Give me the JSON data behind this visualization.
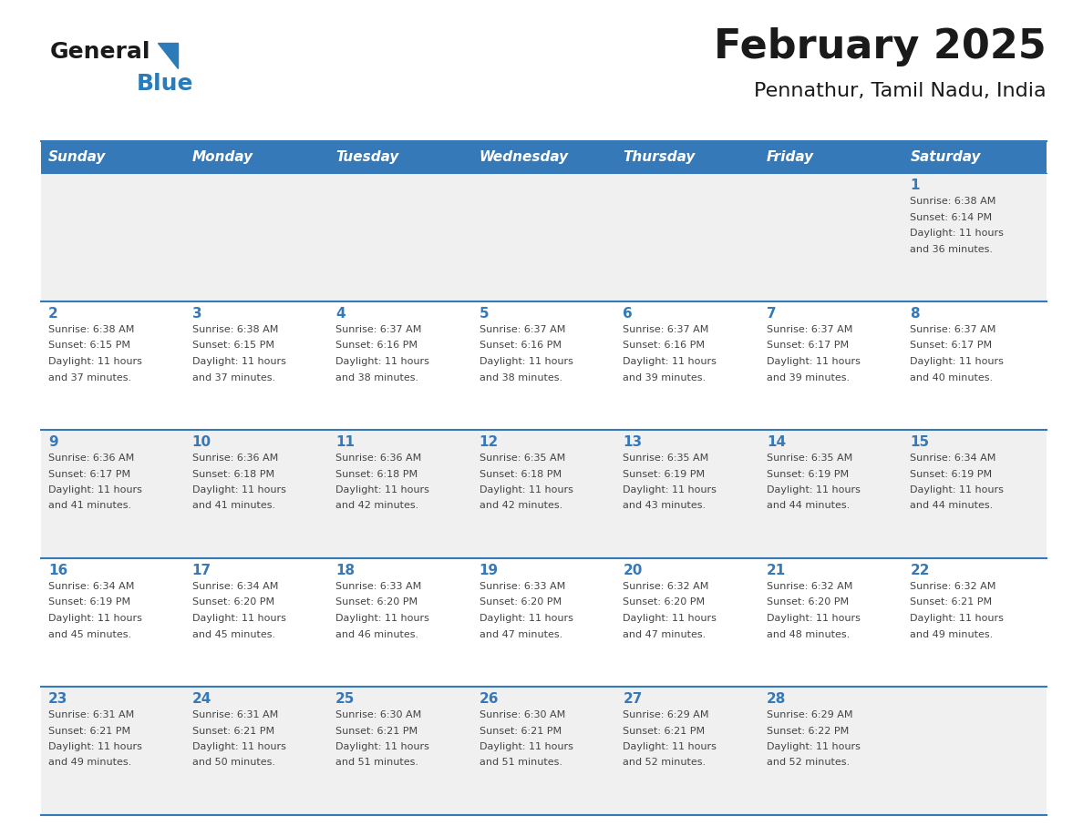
{
  "title": "February 2025",
  "subtitle": "Pennathur, Tamil Nadu, India",
  "days_of_week": [
    "Sunday",
    "Monday",
    "Tuesday",
    "Wednesday",
    "Thursday",
    "Friday",
    "Saturday"
  ],
  "header_bg_color": "#3579B8",
  "header_text_color": "#FFFFFF",
  "cell_bg_colors": [
    "#F0F0F0",
    "#FFFFFF",
    "#F0F0F0",
    "#FFFFFF",
    "#F0F0F0"
  ],
  "day_number_color": "#3579B8",
  "info_text_color": "#444444",
  "border_color": "#3579B8",
  "title_color": "#1a1a1a",
  "subtitle_color": "#1a1a1a",
  "logo_general_color": "#1a1a1a",
  "logo_blue_color": "#2B7BB9",
  "weeks": [
    [
      {
        "day": null,
        "info": null
      },
      {
        "day": null,
        "info": null
      },
      {
        "day": null,
        "info": null
      },
      {
        "day": null,
        "info": null
      },
      {
        "day": null,
        "info": null
      },
      {
        "day": null,
        "info": null
      },
      {
        "day": 1,
        "info": "Sunrise: 6:38 AM\nSunset: 6:14 PM\nDaylight: 11 hours\nand 36 minutes."
      }
    ],
    [
      {
        "day": 2,
        "info": "Sunrise: 6:38 AM\nSunset: 6:15 PM\nDaylight: 11 hours\nand 37 minutes."
      },
      {
        "day": 3,
        "info": "Sunrise: 6:38 AM\nSunset: 6:15 PM\nDaylight: 11 hours\nand 37 minutes."
      },
      {
        "day": 4,
        "info": "Sunrise: 6:37 AM\nSunset: 6:16 PM\nDaylight: 11 hours\nand 38 minutes."
      },
      {
        "day": 5,
        "info": "Sunrise: 6:37 AM\nSunset: 6:16 PM\nDaylight: 11 hours\nand 38 minutes."
      },
      {
        "day": 6,
        "info": "Sunrise: 6:37 AM\nSunset: 6:16 PM\nDaylight: 11 hours\nand 39 minutes."
      },
      {
        "day": 7,
        "info": "Sunrise: 6:37 AM\nSunset: 6:17 PM\nDaylight: 11 hours\nand 39 minutes."
      },
      {
        "day": 8,
        "info": "Sunrise: 6:37 AM\nSunset: 6:17 PM\nDaylight: 11 hours\nand 40 minutes."
      }
    ],
    [
      {
        "day": 9,
        "info": "Sunrise: 6:36 AM\nSunset: 6:17 PM\nDaylight: 11 hours\nand 41 minutes."
      },
      {
        "day": 10,
        "info": "Sunrise: 6:36 AM\nSunset: 6:18 PM\nDaylight: 11 hours\nand 41 minutes."
      },
      {
        "day": 11,
        "info": "Sunrise: 6:36 AM\nSunset: 6:18 PM\nDaylight: 11 hours\nand 42 minutes."
      },
      {
        "day": 12,
        "info": "Sunrise: 6:35 AM\nSunset: 6:18 PM\nDaylight: 11 hours\nand 42 minutes."
      },
      {
        "day": 13,
        "info": "Sunrise: 6:35 AM\nSunset: 6:19 PM\nDaylight: 11 hours\nand 43 minutes."
      },
      {
        "day": 14,
        "info": "Sunrise: 6:35 AM\nSunset: 6:19 PM\nDaylight: 11 hours\nand 44 minutes."
      },
      {
        "day": 15,
        "info": "Sunrise: 6:34 AM\nSunset: 6:19 PM\nDaylight: 11 hours\nand 44 minutes."
      }
    ],
    [
      {
        "day": 16,
        "info": "Sunrise: 6:34 AM\nSunset: 6:19 PM\nDaylight: 11 hours\nand 45 minutes."
      },
      {
        "day": 17,
        "info": "Sunrise: 6:34 AM\nSunset: 6:20 PM\nDaylight: 11 hours\nand 45 minutes."
      },
      {
        "day": 18,
        "info": "Sunrise: 6:33 AM\nSunset: 6:20 PM\nDaylight: 11 hours\nand 46 minutes."
      },
      {
        "day": 19,
        "info": "Sunrise: 6:33 AM\nSunset: 6:20 PM\nDaylight: 11 hours\nand 47 minutes."
      },
      {
        "day": 20,
        "info": "Sunrise: 6:32 AM\nSunset: 6:20 PM\nDaylight: 11 hours\nand 47 minutes."
      },
      {
        "day": 21,
        "info": "Sunrise: 6:32 AM\nSunset: 6:20 PM\nDaylight: 11 hours\nand 48 minutes."
      },
      {
        "day": 22,
        "info": "Sunrise: 6:32 AM\nSunset: 6:21 PM\nDaylight: 11 hours\nand 49 minutes."
      }
    ],
    [
      {
        "day": 23,
        "info": "Sunrise: 6:31 AM\nSunset: 6:21 PM\nDaylight: 11 hours\nand 49 minutes."
      },
      {
        "day": 24,
        "info": "Sunrise: 6:31 AM\nSunset: 6:21 PM\nDaylight: 11 hours\nand 50 minutes."
      },
      {
        "day": 25,
        "info": "Sunrise: 6:30 AM\nSunset: 6:21 PM\nDaylight: 11 hours\nand 51 minutes."
      },
      {
        "day": 26,
        "info": "Sunrise: 6:30 AM\nSunset: 6:21 PM\nDaylight: 11 hours\nand 51 minutes."
      },
      {
        "day": 27,
        "info": "Sunrise: 6:29 AM\nSunset: 6:21 PM\nDaylight: 11 hours\nand 52 minutes."
      },
      {
        "day": 28,
        "info": "Sunrise: 6:29 AM\nSunset: 6:22 PM\nDaylight: 11 hours\nand 52 minutes."
      },
      {
        "day": null,
        "info": null
      }
    ]
  ]
}
